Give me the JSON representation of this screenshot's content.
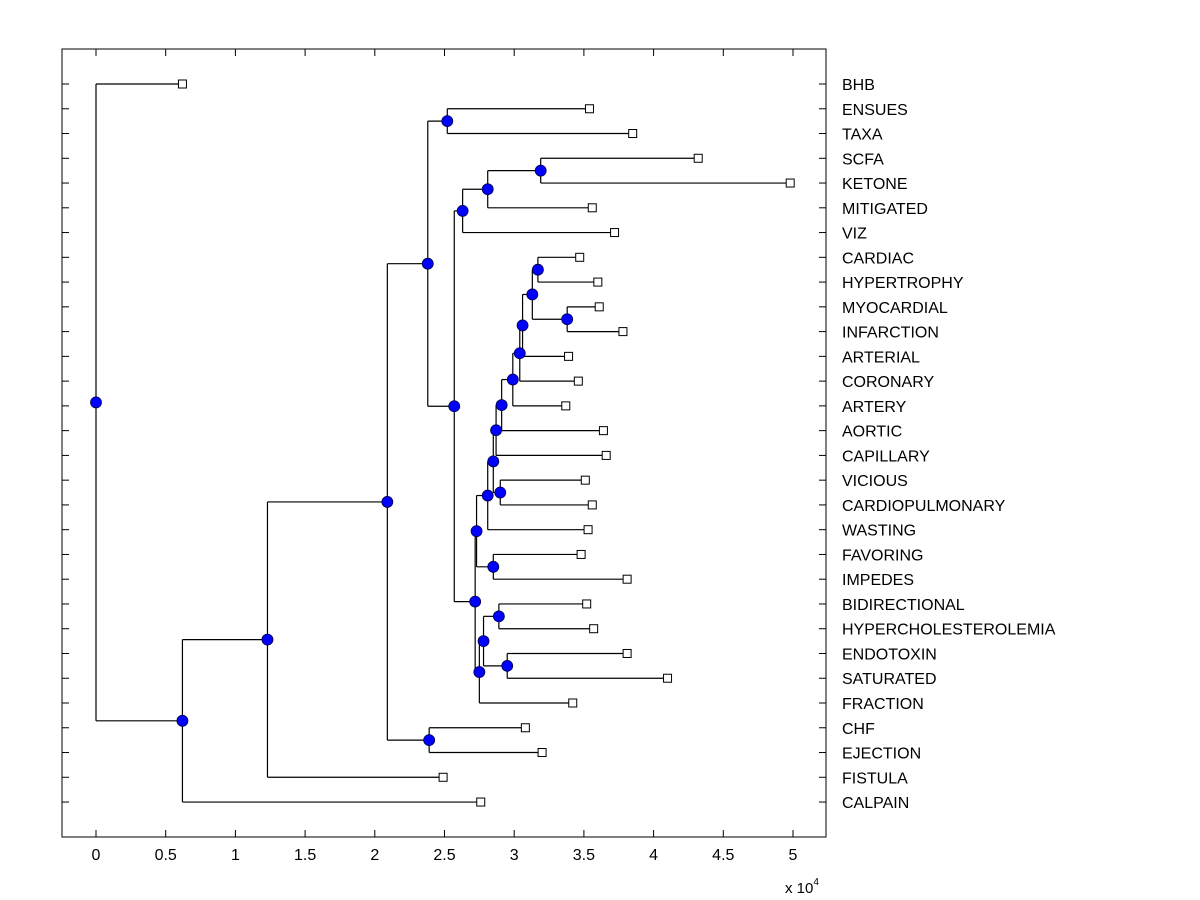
{
  "chart_data": {
    "type": "dendrogram",
    "title": "",
    "xlabel": "",
    "ylabel": "",
    "x_multiplier_label": "x 10",
    "x_multiplier_exponent": "4",
    "xlim": [
      -0.25,
      5.25
    ],
    "xticks": [
      0,
      0.5,
      1,
      1.5,
      2,
      2.5,
      3,
      3.5,
      4,
      4.5,
      5
    ],
    "xtick_labels": [
      "0",
      "0.5",
      "1",
      "1.5",
      "2",
      "2.5",
      "3",
      "3.5",
      "4",
      "4.5",
      "5"
    ],
    "grid": false,
    "leaf_marker": "square",
    "node_marker": "circle",
    "node_color": "#0000ff",
    "line_color": "#000000",
    "leaves": [
      {
        "label": "BHB",
        "value": 0.62
      },
      {
        "label": "ENSUES",
        "value": 3.54
      },
      {
        "label": "TAXA",
        "value": 3.85
      },
      {
        "label": "SCFA",
        "value": 4.32
      },
      {
        "label": "KETONE",
        "value": 4.98
      },
      {
        "label": "MITIGATED",
        "value": 3.56
      },
      {
        "label": "VIZ",
        "value": 3.72
      },
      {
        "label": "CARDIAC",
        "value": 3.47
      },
      {
        "label": "HYPERTROPHY",
        "value": 3.6
      },
      {
        "label": "MYOCARDIAL",
        "value": 3.61
      },
      {
        "label": "INFARCTION",
        "value": 3.78
      },
      {
        "label": "ARTERIAL",
        "value": 3.39
      },
      {
        "label": "CORONARY",
        "value": 3.46
      },
      {
        "label": "ARTERY",
        "value": 3.37
      },
      {
        "label": "AORTIC",
        "value": 3.64
      },
      {
        "label": "CAPILLARY",
        "value": 3.66
      },
      {
        "label": "VICIOUS",
        "value": 3.51
      },
      {
        "label": "CARDIOPULMONARY",
        "value": 3.56
      },
      {
        "label": "WASTING",
        "value": 3.53
      },
      {
        "label": "FAVORING",
        "value": 3.48
      },
      {
        "label": "IMPEDES",
        "value": 3.81
      },
      {
        "label": "BIDIRECTIONAL",
        "value": 3.52
      },
      {
        "label": "HYPERCHOLESTEROLEMIA",
        "value": 3.57
      },
      {
        "label": "ENDOTOXIN",
        "value": 3.81
      },
      {
        "label": "SATURATED",
        "value": 4.1
      },
      {
        "label": "FRACTION",
        "value": 3.42
      },
      {
        "label": "CHF",
        "value": 3.08
      },
      {
        "label": "EJECTION",
        "value": 3.2
      },
      {
        "label": "FISTULA",
        "value": 2.49
      },
      {
        "label": "CALPAIN",
        "value": 2.76
      }
    ],
    "nodes": [
      {
        "id": "n_ensues_taxa",
        "value": 2.52,
        "children": [
          "L1",
          "L2"
        ]
      },
      {
        "id": "n_scfa_ketone",
        "value": 3.19,
        "children": [
          "L3",
          "L4"
        ]
      },
      {
        "id": "n_mitigated",
        "value": 2.81,
        "children": [
          "n_scfa_ketone",
          "L5"
        ]
      },
      {
        "id": "n_viz",
        "value": 2.63,
        "children": [
          "n_mitigated",
          "L6"
        ]
      },
      {
        "id": "n_cardiac_hypertrophy",
        "value": 3.17,
        "children": [
          "L7",
          "L8"
        ]
      },
      {
        "id": "n_myocardial_infarction",
        "value": 3.38,
        "children": [
          "L9",
          "L10"
        ]
      },
      {
        "id": "n_heart",
        "value": 3.13,
        "children": [
          "n_cardiac_hypertrophy",
          "n_myocardial_infarction"
        ]
      },
      {
        "id": "n_arterial",
        "value": 3.06,
        "children": [
          "n_heart",
          "L11"
        ]
      },
      {
        "id": "n_coronary",
        "value": 3.04,
        "children": [
          "n_arterial",
          "L12"
        ]
      },
      {
        "id": "n_artery",
        "value": 2.99,
        "children": [
          "n_coronary",
          "L13"
        ]
      },
      {
        "id": "n_aortic",
        "value": 2.91,
        "children": [
          "n_artery",
          "L14"
        ]
      },
      {
        "id": "n_capillary",
        "value": 2.87,
        "children": [
          "n_aortic",
          "L15"
        ]
      },
      {
        "id": "n_vicious_cardiopulmonary",
        "value": 2.9,
        "children": [
          "L16",
          "L17"
        ]
      },
      {
        "id": "n_vascular",
        "value": 2.85,
        "children": [
          "n_capillary",
          "n_vicious_cardiopulmonary"
        ]
      },
      {
        "id": "n_wasting",
        "value": 2.81,
        "children": [
          "n_vascular",
          "L18"
        ]
      },
      {
        "id": "n_favoring_impedes",
        "value": 2.85,
        "children": [
          "L19",
          "L20"
        ]
      },
      {
        "id": "n_mid",
        "value": 2.73,
        "children": [
          "n_wasting",
          "n_favoring_impedes"
        ]
      },
      {
        "id": "n_bidirectional_hyperchol",
        "value": 2.89,
        "children": [
          "L21",
          "L22"
        ]
      },
      {
        "id": "n_endotoxin_saturated",
        "value": 2.95,
        "children": [
          "L23",
          "L24"
        ]
      },
      {
        "id": "n_lipid",
        "value": 2.78,
        "children": [
          "n_bidirectional_hyperchol",
          "n_endotoxin_saturated"
        ]
      },
      {
        "id": "n_fraction",
        "value": 2.75,
        "children": [
          "n_lipid",
          "L25"
        ]
      },
      {
        "id": "n_lower",
        "value": 2.72,
        "children": [
          "n_mid",
          "n_fraction"
        ]
      },
      {
        "id": "n_big",
        "value": 2.57,
        "children": [
          "n_viz",
          "n_lower"
        ]
      },
      {
        "id": "n_upper",
        "value": 2.38,
        "children": [
          "n_ensues_taxa",
          "n_big"
        ]
      },
      {
        "id": "n_chf_ejection",
        "value": 2.39,
        "children": [
          "L26",
          "L27"
        ]
      },
      {
        "id": "n_main",
        "value": 2.09,
        "children": [
          "n_upper",
          "n_chf_ejection"
        ]
      },
      {
        "id": "n_fistula",
        "value": 1.23,
        "children": [
          "n_main",
          "L28"
        ]
      },
      {
        "id": "n_calpain",
        "value": 0.62,
        "children": [
          "n_fistula",
          "L29"
        ]
      },
      {
        "id": "n_root",
        "value": 0.0,
        "children": [
          "L0",
          "n_calpain"
        ]
      }
    ]
  }
}
